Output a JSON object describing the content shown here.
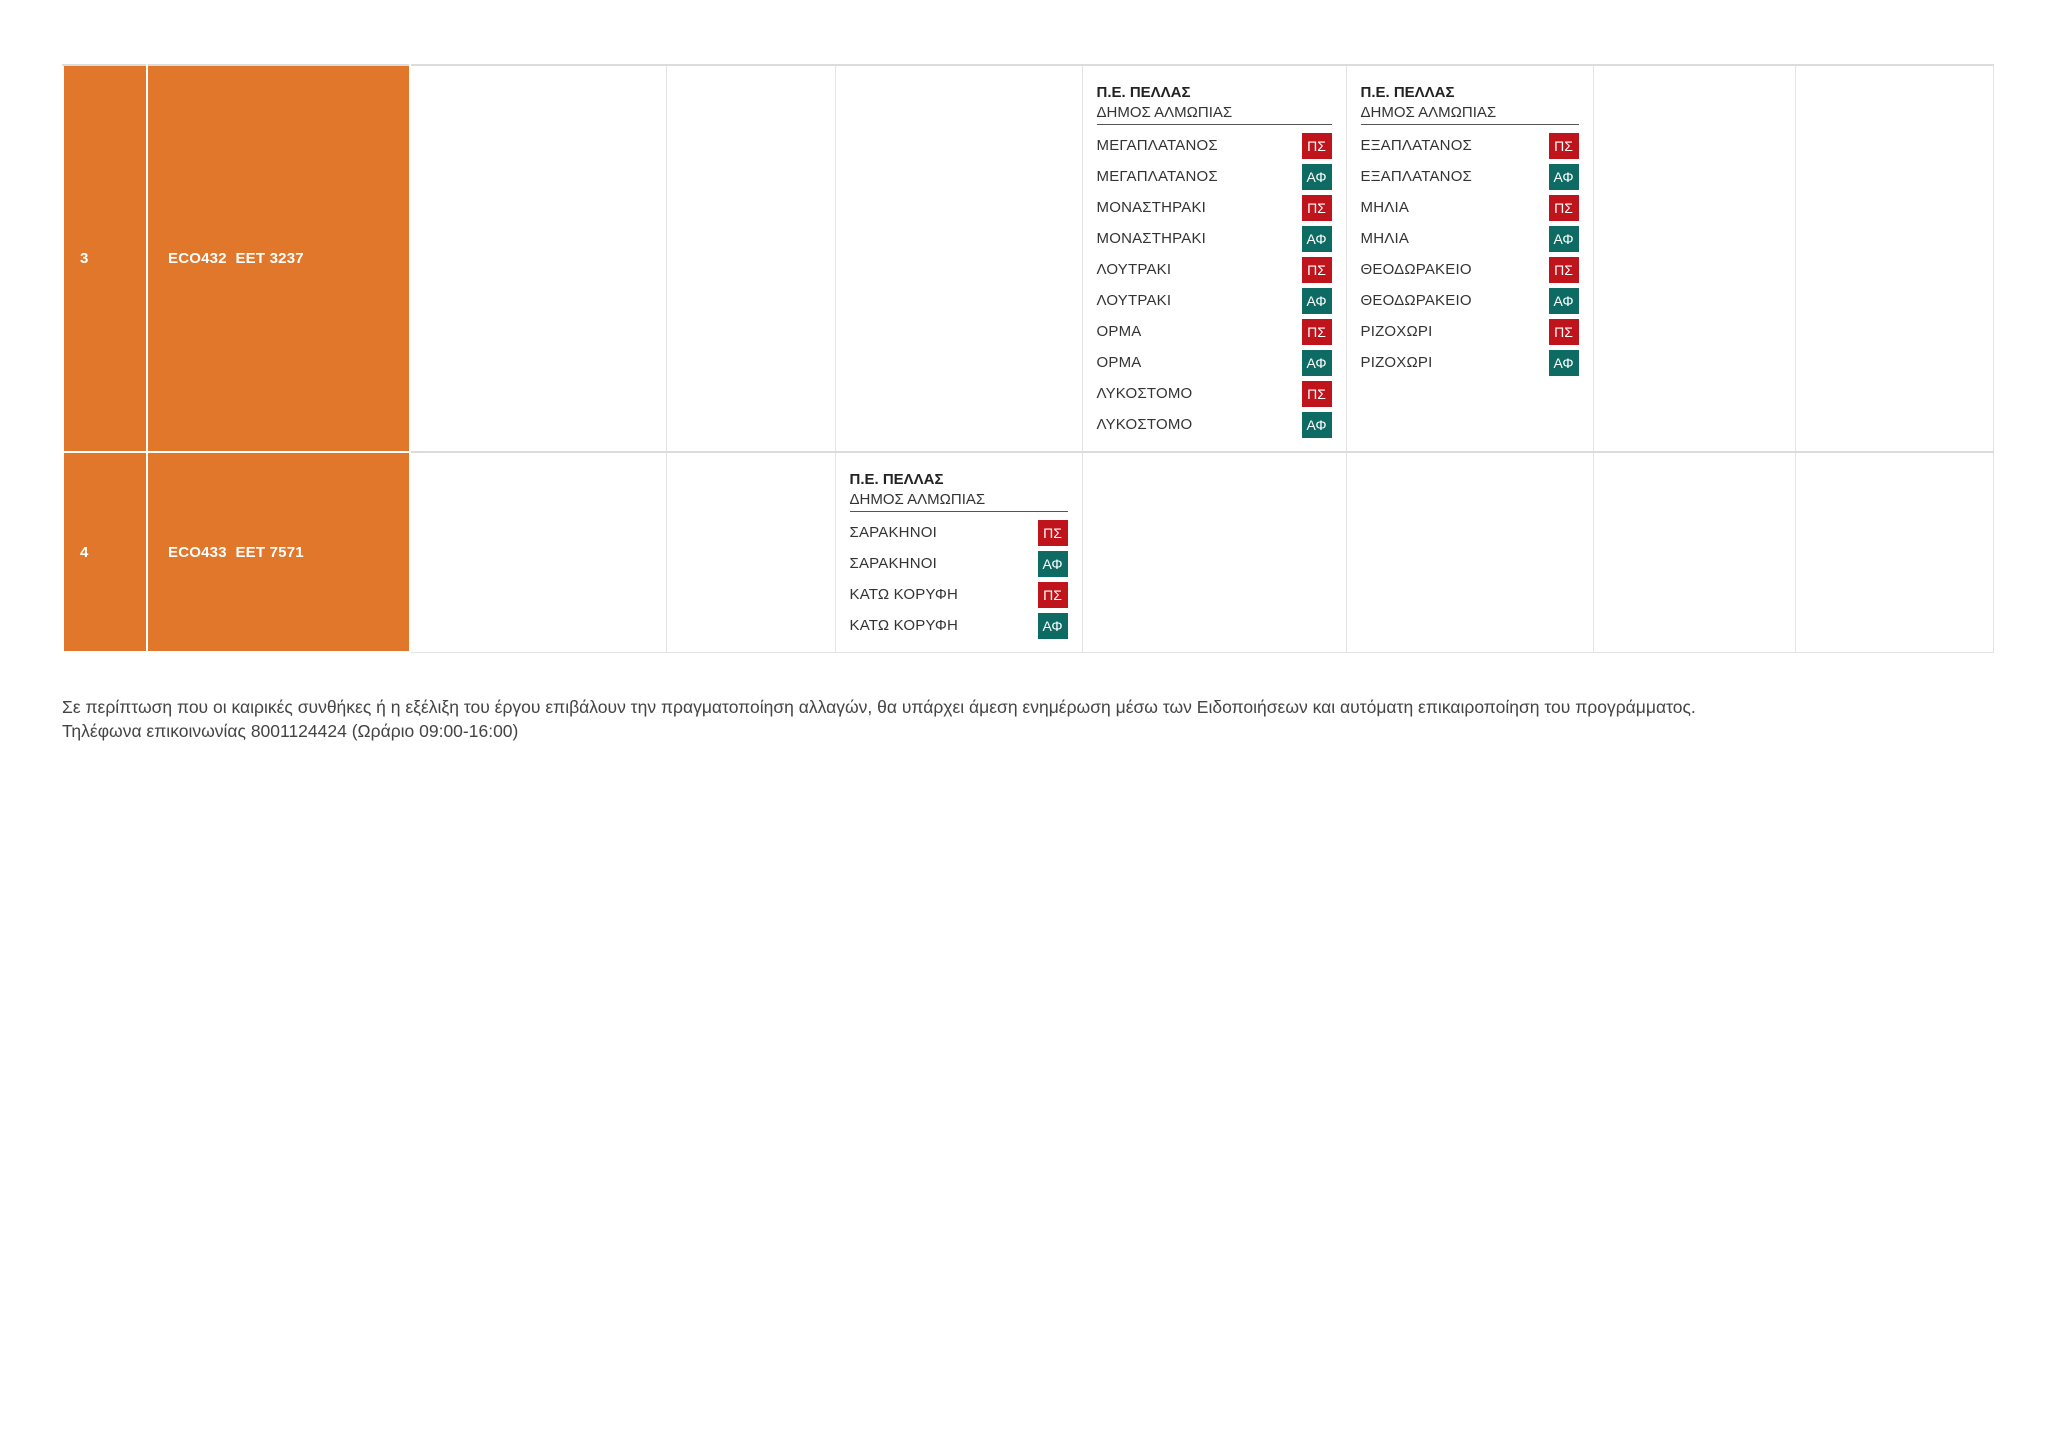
{
  "rows": [
    {
      "number": "3",
      "vehicle": "ECO432  ΕΕΤ 3237",
      "block_a": {
        "region": "Π.Ε. ΠΕΛΛΑΣ",
        "municipality": "ΔΗΜΟΣ ΑΛΜΩΠΙΑΣ",
        "stops": [
          {
            "name": "ΜΕΓΑΠΛΑΤΑΝΟΣ",
            "badge": "ΠΣ"
          },
          {
            "name": "ΜΕΓΑΠΛΑΤΑΝΟΣ",
            "badge": "ΑΦ"
          },
          {
            "name": "ΜΟΝΑΣΤΗΡΑΚΙ",
            "badge": "ΠΣ"
          },
          {
            "name": "ΜΟΝΑΣΤΗΡΑΚΙ",
            "badge": "ΑΦ"
          },
          {
            "name": "ΛΟΥΤΡΑΚΙ",
            "badge": "ΠΣ"
          },
          {
            "name": "ΛΟΥΤΡΑΚΙ",
            "badge": "ΑΦ"
          },
          {
            "name": "ΟΡΜΑ",
            "badge": "ΠΣ"
          },
          {
            "name": "ΟΡΜΑ",
            "badge": "ΑΦ"
          },
          {
            "name": "ΛΥΚΟΣΤΟΜΟ",
            "badge": "ΠΣ"
          },
          {
            "name": "ΛΥΚΟΣΤΟΜΟ",
            "badge": "ΑΦ"
          }
        ]
      },
      "block_b": {
        "region": "Π.Ε. ΠΕΛΛΑΣ",
        "municipality": "ΔΗΜΟΣ ΑΛΜΩΠΙΑΣ",
        "stops": [
          {
            "name": "ΕΞΑΠΛΑΤΑΝΟΣ",
            "badge": "ΠΣ"
          },
          {
            "name": "ΕΞΑΠΛΑΤΑΝΟΣ",
            "badge": "ΑΦ"
          },
          {
            "name": "ΜΗΛΙΑ",
            "badge": "ΠΣ"
          },
          {
            "name": "ΜΗΛΙΑ",
            "badge": "ΑΦ"
          },
          {
            "name": "ΘΕΟΔΩΡΑΚΕΙΟ",
            "badge": "ΠΣ"
          },
          {
            "name": "ΘΕΟΔΩΡΑΚΕΙΟ",
            "badge": "ΑΦ"
          },
          {
            "name": "ΡΙΖΟΧΩΡΙ",
            "badge": "ΠΣ"
          },
          {
            "name": "ΡΙΖΟΧΩΡΙ",
            "badge": "ΑΦ"
          }
        ]
      }
    },
    {
      "number": "4",
      "vehicle": "ECO433  ΕΕΤ 7571",
      "block_a": {
        "region": "Π.Ε. ΠΕΛΛΑΣ",
        "municipality": "ΔΗΜΟΣ ΑΛΜΩΠΙΑΣ",
        "stops": [
          {
            "name": "ΣΑΡΑΚΗΝΟΙ",
            "badge": "ΠΣ"
          },
          {
            "name": "ΣΑΡΑΚΗΝΟΙ",
            "badge": "ΑΦ"
          },
          {
            "name": "ΚΑΤΩ ΚΟΡΥΦΗ",
            "badge": "ΠΣ"
          },
          {
            "name": "ΚΑΤΩ ΚΟΡΥΦΗ",
            "badge": "ΑΦ"
          }
        ]
      }
    }
  ],
  "footer": {
    "notice": "Σε περίπτωση που οι καιρικές συνθήκες ή η εξέλιξη του έργου επιβάλουν την πραγματοποίηση αλλαγών, θα υπάρχει άμεση ενημέρωση μέσω των Ειδοποιήσεων και αυτόματη επικαιροποίηση του προγράμματος.",
    "contact": "Τηλέφωνα επικοινωνίας 8001124424 (Ωράριο 09:00-16:00)"
  },
  "colors": {
    "row_accent": "#e1772b",
    "badge_ps": "#c0141d",
    "badge_af": "#0e6b64"
  }
}
